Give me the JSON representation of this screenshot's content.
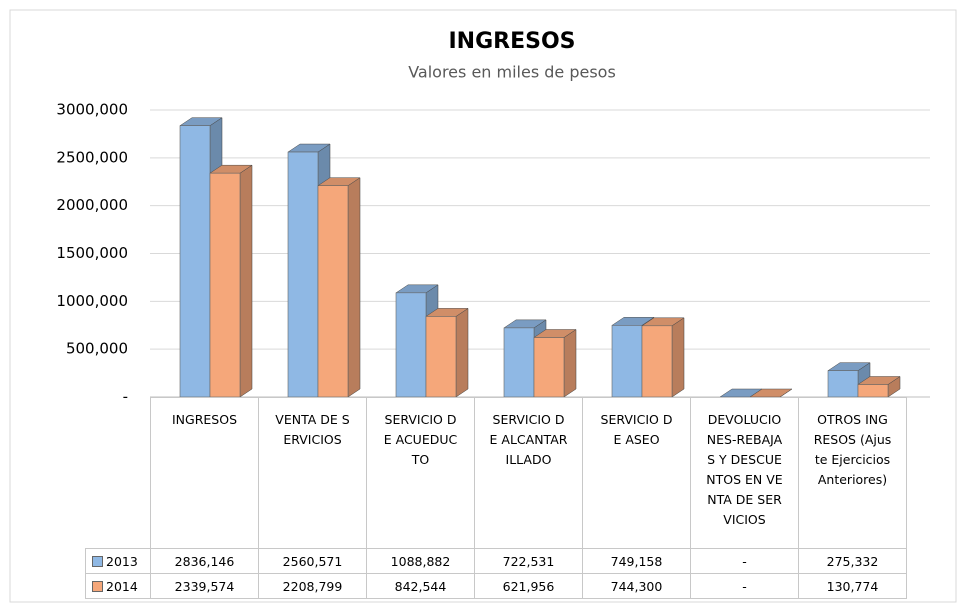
{
  "chart_data": {
    "type": "bar3d",
    "title": "INGRESOS",
    "subtitle": "Valores en miles de pesos",
    "categories": [
      "INGRESOS",
      "VENTA DE SERVICIOS",
      "SERVICIO DE ACUEDUCTO",
      "SERVICIO DE ALCANTARILLADO",
      "SERVICIO DE ASEO",
      "DEVOLUCIONES-REBAJAS Y DESCUENTOS EN VENTA DE SERVICIOS",
      "OTROS INGRESOS (Ajuste Ejercicios Anteriores)"
    ],
    "series": [
      {
        "name": "2013",
        "color": "#8fb8e4",
        "values": [
          2836146,
          2560571,
          1088882,
          722531,
          749158,
          0,
          275332
        ],
        "value_labels": [
          "2836,146",
          "2560,571",
          "1088,882",
          "722,531",
          "749,158",
          "-",
          "275,332"
        ]
      },
      {
        "name": "2014",
        "color": "#f5a77a",
        "values": [
          2339574,
          2208799,
          842544,
          621956,
          744300,
          0,
          130774
        ],
        "value_labels": [
          "2339,574",
          "2208,799",
          "842,544",
          "621,956",
          "744,300",
          "-",
          "130,774"
        ]
      }
    ],
    "ylim": [
      0,
      3000000
    ],
    "yticks": [
      {
        "value": 0,
        "label": "-"
      },
      {
        "value": 500000,
        "label": "500,000"
      },
      {
        "value": 1000000,
        "label": "1000,000"
      },
      {
        "value": 1500000,
        "label": "1500,000"
      },
      {
        "value": 2000000,
        "label": "2000,000"
      },
      {
        "value": 2500000,
        "label": "2500,000"
      },
      {
        "value": 3000000,
        "label": "3000,000"
      }
    ],
    "grid": true
  }
}
